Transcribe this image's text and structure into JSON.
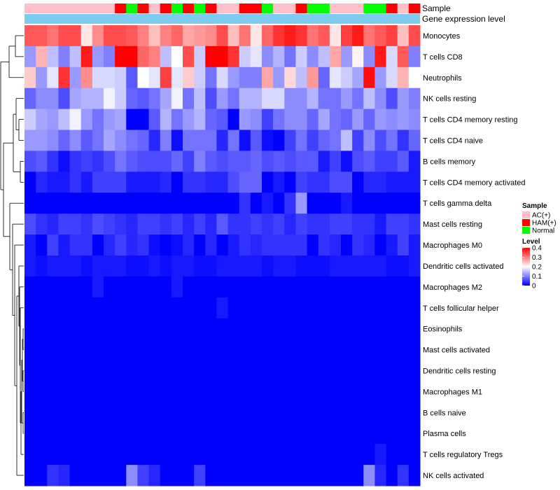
{
  "chart_data": {
    "type": "heatmap",
    "title": "",
    "annotation_labels": [
      "Sample",
      "Gene expression level"
    ],
    "row_labels": [
      "Monocytes",
      "T cells CD8",
      "Neutrophils",
      "NK cells resting",
      "T cells CD4 memory resting",
      "T cells CD4 naive",
      "B cells memory",
      "T cells CD4 memory activated",
      "T cells gamma delta",
      "Mast cells resting",
      "Macrophages M0",
      "Dendritic cells activated",
      "Macrophages M2",
      "T cells follicular helper",
      "Eosinophils",
      "Mast cells activated",
      "Dendritic cells resting",
      "Macrophages M1",
      "B cells naive",
      "Plasma cells",
      "T cells regulatory  Tregs",
      "NK cells activated"
    ],
    "column_sample": [
      "AC(+)",
      "AC(+)",
      "AC(+)",
      "AC(+)",
      "AC(+)",
      "AC(+)",
      "AC(+)",
      "AC(+)",
      "HAM(+)",
      "Normal",
      "HAM(+)",
      "AC(+)",
      "HAM(+)",
      "Normal",
      "HAM(+)",
      "Normal",
      "HAM(+)",
      "AC(+)",
      "AC(+)",
      "HAM(+)",
      "HAM(+)",
      "Normal",
      "AC(+)",
      "AC(+)",
      "HAM(+)",
      "Normal",
      "Normal",
      "AC(+)",
      "AC(+)",
      "AC(+)",
      "Normal",
      "Normal",
      "HAM(+)",
      "AC(+)",
      "HAM(+)"
    ],
    "values": [
      [
        0.33,
        0.33,
        0.31,
        0.34,
        0.34,
        0.22,
        0.29,
        0.34,
        0.34,
        0.33,
        0.3,
        0.25,
        0.3,
        0.32,
        0.27,
        0.28,
        0.29,
        0.34,
        0.25,
        0.31,
        0.22,
        0.32,
        0.36,
        0.38,
        0.36,
        0.31,
        0.33,
        0.22,
        0.35,
        0.38,
        0.31,
        0.33,
        0.35,
        0.25,
        0.34
      ],
      [
        0.12,
        0.26,
        0.15,
        0.1,
        0.15,
        0.38,
        0.12,
        0.1,
        0.4,
        0.4,
        0.32,
        0.3,
        0.15,
        0.2,
        0.34,
        0.16,
        0.4,
        0.4,
        0.36,
        0.16,
        0.18,
        0.11,
        0.14,
        0.09,
        0.16,
        0.11,
        0.15,
        0.27,
        0.12,
        0.21,
        0.11,
        0.38,
        0.17,
        0.33,
        0.1
      ],
      [
        0.24,
        0.12,
        0.18,
        0.36,
        0.12,
        0.29,
        0.17,
        0.17,
        0.16,
        0.07,
        0.2,
        0.18,
        0.35,
        0.18,
        0.24,
        0.16,
        0.09,
        0.17,
        0.12,
        0.1,
        0.1,
        0.27,
        0.12,
        0.23,
        0.15,
        0.28,
        0.08,
        0.18,
        0.16,
        0.13,
        0.39,
        0.12,
        0.17,
        0.26,
        0.2
      ],
      [
        0.08,
        0.11,
        0.11,
        0.06,
        0.13,
        0.14,
        0.14,
        0.19,
        0.16,
        0.08,
        0.07,
        0.09,
        0.13,
        0.19,
        0.09,
        0.15,
        0.06,
        0.12,
        0.09,
        0.14,
        0.14,
        0.17,
        0.17,
        0.11,
        0.11,
        0.14,
        0.09,
        0.09,
        0.12,
        0.09,
        0.15,
        0.11,
        0.06,
        0.12,
        0.1
      ],
      [
        0.16,
        0.13,
        0.12,
        0.15,
        0.19,
        0.12,
        0.09,
        0.12,
        0.13,
        0.0,
        0.0,
        0.07,
        0.14,
        0.09,
        0.12,
        0.14,
        0.08,
        0.07,
        0.0,
        0.12,
        0.11,
        0.05,
        0.09,
        0.11,
        0.11,
        0.08,
        0.13,
        0.09,
        0.08,
        0.12,
        0.08,
        0.12,
        0.11,
        0.12,
        0.11
      ],
      [
        0.12,
        0.12,
        0.11,
        0.08,
        0.11,
        0.07,
        0.09,
        0.13,
        0.11,
        0.09,
        0.08,
        0.03,
        0.1,
        0.01,
        0.09,
        0.09,
        0.09,
        0.03,
        0.09,
        0.01,
        0.07,
        0.01,
        0.0,
        0.05,
        0.09,
        0.05,
        0.08,
        0.09,
        0.15,
        0.05,
        0.11,
        0.06,
        0.09,
        0.04,
        0.08
      ],
      [
        0.06,
        0.07,
        0.04,
        0.01,
        0.04,
        0.05,
        0.04,
        0.06,
        0.09,
        0.07,
        0.06,
        0.06,
        0.06,
        0.08,
        0.05,
        0.1,
        0.07,
        0.06,
        0.07,
        0.07,
        0.08,
        0.06,
        0.07,
        0.06,
        0.07,
        0.07,
        0.02,
        0.05,
        0.01,
        0.06,
        0.07,
        0.05,
        0.05,
        0.07,
        0.02
      ],
      [
        0.0,
        0.03,
        0.02,
        0.02,
        0.04,
        0.02,
        0.05,
        0.05,
        0.05,
        0.02,
        0.02,
        0.02,
        0.03,
        0.0,
        0.04,
        0.04,
        0.03,
        0.03,
        0.06,
        0.08,
        0.08,
        0.0,
        0.02,
        0.0,
        0.05,
        0.04,
        0.04,
        0.06,
        0.06,
        0.0,
        0.03,
        0.03,
        0.02,
        0.02,
        0.02
      ],
      [
        0.0,
        0.0,
        0.0,
        0.0,
        0.0,
        0.0,
        0.0,
        0.0,
        0.0,
        0.0,
        0.0,
        0.0,
        0.0,
        0.0,
        0.0,
        0.0,
        0.0,
        0.0,
        0.0,
        0.04,
        0.0,
        0.02,
        0.0,
        0.04,
        0.12,
        0.0,
        0.0,
        0.0,
        0.02,
        0.0,
        0.0,
        0.0,
        0.0,
        0.0,
        0.0
      ],
      [
        0.06,
        0.04,
        0.03,
        0.05,
        0.05,
        0.04,
        0.06,
        0.05,
        0.04,
        0.03,
        0.05,
        0.05,
        0.04,
        0.05,
        0.03,
        0.05,
        0.03,
        0.07,
        0.04,
        0.04,
        0.05,
        0.04,
        0.05,
        0.03,
        0.05,
        0.04,
        0.04,
        0.05,
        0.05,
        0.04,
        0.04,
        0.02,
        0.05,
        0.05,
        0.04
      ],
      [
        0.02,
        0.0,
        0.05,
        0.02,
        0.04,
        0.04,
        0.0,
        0.03,
        0.05,
        0.03,
        0.04,
        0.01,
        0.0,
        0.01,
        0.03,
        0.0,
        0.03,
        0.0,
        0.02,
        0.04,
        0.03,
        0.04,
        0.04,
        0.04,
        0.04,
        0.0,
        0.04,
        0.03,
        0.0,
        0.04,
        0.03,
        0.0,
        0.02,
        0.05,
        0.02
      ],
      [
        0.02,
        0.01,
        0.02,
        0.02,
        0.02,
        0.01,
        0.02,
        0.02,
        0.02,
        0.01,
        0.01,
        0.02,
        0.01,
        0.02,
        0.02,
        0.01,
        0.01,
        0.02,
        0.02,
        0.02,
        0.02,
        0.01,
        0.02,
        0.02,
        0.01,
        0.01,
        0.01,
        0.02,
        0.02,
        0.02,
        0.02,
        0.02,
        0.01,
        0.01,
        0.02
      ],
      [
        0.0,
        0.0,
        0.0,
        0.0,
        0.0,
        0.0,
        0.02,
        0.0,
        0.0,
        0.0,
        0.0,
        0.0,
        0.0,
        0.02,
        0.0,
        0.0,
        0.0,
        0.0,
        0.0,
        0.0,
        0.0,
        0.0,
        0.0,
        0.0,
        0.0,
        0.0,
        0.0,
        0.0,
        0.0,
        0.0,
        0.0,
        0.0,
        0.0,
        0.0,
        0.0
      ],
      [
        0.0,
        0.0,
        0.0,
        0.0,
        0.0,
        0.0,
        0.0,
        0.0,
        0.0,
        0.0,
        0.0,
        0.0,
        0.0,
        0.0,
        0.0,
        0.0,
        0.0,
        0.02,
        0.0,
        0.0,
        0.0,
        0.0,
        0.0,
        0.0,
        0.0,
        0.0,
        0.0,
        0.0,
        0.0,
        0.0,
        0.0,
        0.0,
        0.0,
        0.0,
        0.0
      ],
      [
        0.0,
        0.0,
        0.0,
        0.0,
        0.0,
        0.0,
        0.0,
        0.0,
        0.0,
        0.0,
        0.0,
        0.0,
        0.0,
        0.0,
        0.0,
        0.0,
        0.0,
        0.0,
        0.0,
        0.0,
        0.0,
        0.0,
        0.0,
        0.0,
        0.0,
        0.0,
        0.0,
        0.0,
        0.0,
        0.0,
        0.0,
        0.0,
        0.0,
        0.0,
        0.0
      ],
      [
        0.0,
        0.0,
        0.0,
        0.0,
        0.0,
        0.0,
        0.0,
        0.0,
        0.0,
        0.0,
        0.0,
        0.0,
        0.0,
        0.0,
        0.0,
        0.0,
        0.0,
        0.0,
        0.0,
        0.0,
        0.0,
        0.0,
        0.0,
        0.0,
        0.0,
        0.0,
        0.0,
        0.0,
        0.0,
        0.0,
        0.0,
        0.0,
        0.0,
        0.0,
        0.0
      ],
      [
        0.0,
        0.0,
        0.0,
        0.0,
        0.0,
        0.0,
        0.0,
        0.0,
        0.0,
        0.0,
        0.0,
        0.0,
        0.0,
        0.0,
        0.0,
        0.0,
        0.0,
        0.0,
        0.0,
        0.0,
        0.0,
        0.0,
        0.0,
        0.0,
        0.0,
        0.0,
        0.0,
        0.0,
        0.0,
        0.0,
        0.0,
        0.0,
        0.0,
        0.0,
        0.0
      ],
      [
        0.0,
        0.0,
        0.0,
        0.0,
        0.0,
        0.0,
        0.0,
        0.0,
        0.0,
        0.0,
        0.0,
        0.0,
        0.0,
        0.0,
        0.0,
        0.0,
        0.0,
        0.0,
        0.0,
        0.0,
        0.0,
        0.0,
        0.0,
        0.0,
        0.0,
        0.0,
        0.0,
        0.0,
        0.0,
        0.0,
        0.0,
        0.0,
        0.0,
        0.0,
        0.0
      ],
      [
        0.0,
        0.0,
        0.0,
        0.0,
        0.0,
        0.0,
        0.0,
        0.0,
        0.0,
        0.0,
        0.0,
        0.0,
        0.0,
        0.0,
        0.0,
        0.0,
        0.0,
        0.0,
        0.0,
        0.0,
        0.0,
        0.0,
        0.0,
        0.0,
        0.0,
        0.0,
        0.0,
        0.0,
        0.0,
        0.0,
        0.0,
        0.0,
        0.0,
        0.0,
        0.0
      ],
      [
        0.0,
        0.0,
        0.0,
        0.0,
        0.0,
        0.0,
        0.0,
        0.0,
        0.0,
        0.0,
        0.0,
        0.0,
        0.0,
        0.0,
        0.0,
        0.0,
        0.0,
        0.0,
        0.0,
        0.0,
        0.0,
        0.0,
        0.0,
        0.0,
        0.0,
        0.0,
        0.0,
        0.0,
        0.0,
        0.0,
        0.0,
        0.0,
        0.0,
        0.0,
        0.0
      ],
      [
        0.0,
        0.0,
        0.0,
        0.0,
        0.0,
        0.0,
        0.0,
        0.0,
        0.0,
        0.0,
        0.0,
        0.0,
        0.0,
        0.0,
        0.0,
        0.0,
        0.0,
        0.0,
        0.0,
        0.0,
        0.0,
        0.0,
        0.0,
        0.0,
        0.0,
        0.0,
        0.0,
        0.0,
        0.0,
        0.0,
        0.0,
        0.02,
        0.0,
        0.0,
        0.0
      ],
      [
        0.0,
        0.0,
        0.04,
        0.03,
        0.0,
        0.0,
        0.0,
        0.0,
        0.0,
        0.11,
        0.05,
        0.03,
        0.0,
        0.0,
        0.0,
        0.05,
        0.0,
        0.0,
        0.0,
        0.0,
        0.0,
        0.0,
        0.0,
        0.0,
        0.0,
        0.0,
        0.0,
        0.0,
        0.0,
        0.0,
        0.11,
        0.03,
        0.0,
        0.04,
        0.0
      ]
    ],
    "sample_colors": {
      "AC(+)": "#FFC0CB",
      "HAM(+)": "#FF0000",
      "Normal": "#00FF00"
    },
    "expression_annotation_color": "#7DCBEF",
    "color_scale": {
      "min": 0,
      "max": 0.4,
      "low": "#0000FF",
      "mid": "#FFFFFF",
      "high": "#FF0000",
      "midpoint": 0.2
    },
    "legend": {
      "sample_title": "Sample",
      "sample_items": [
        "AC(+)",
        "HAM(+)",
        "Normal"
      ],
      "level_title": "Level",
      "level_ticks": [
        "0.4",
        "0.3",
        "0.2",
        "0.1",
        "0"
      ],
      "level_tick_values": [
        0.4,
        0.3,
        0.2,
        0.1,
        0
      ]
    },
    "xlabel": "",
    "ylabel": ""
  }
}
